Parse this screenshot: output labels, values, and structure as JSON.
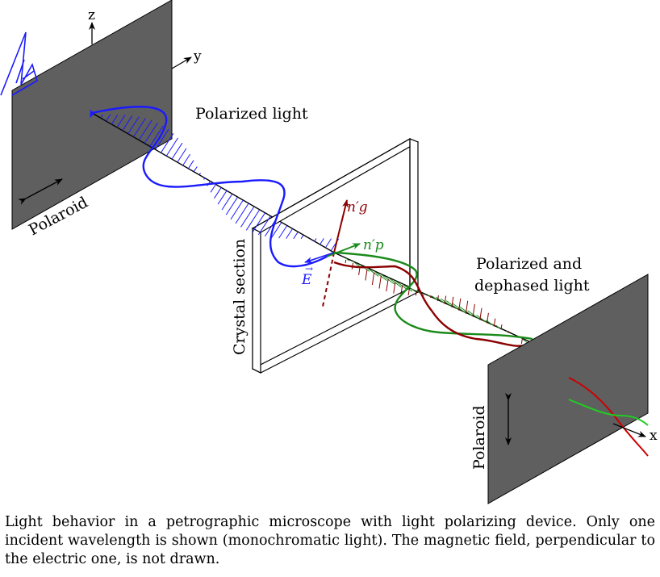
{
  "labels": {
    "axis_z": "z",
    "axis_y": "y",
    "axis_x": "x",
    "polarized_light": "Polarized light",
    "polaroid_left": "Polaroid",
    "polaroid_right": "Polaroid",
    "crystal_section": "Crystal section",
    "e_vector": "E",
    "ng_prime": "n′g",
    "np_prime": "n′p",
    "polarized_dephased_line1": "Polarized and",
    "polarized_dephased_line2": "dephased light"
  },
  "caption": "Light behavior in a petrographic microscope with light polarizing device. Only one incident wavelength is shown (monochromatic light). The magnetic field, perpendicular to the electric one, is not drawn.",
  "colors": {
    "polaroid_fill": "#5f5f5f",
    "incident_wave": "#1a1aff",
    "slow_wave": "#8b0000",
    "fast_wave": "#1a8a1a",
    "crystal_fill": "#ffffff"
  },
  "icons": [
    "double-arrow-icon",
    "axis-arrow-icon"
  ]
}
